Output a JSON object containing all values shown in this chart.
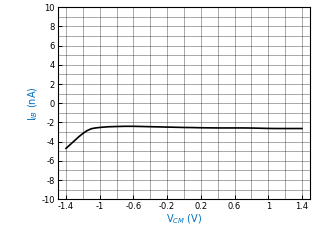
{
  "title": "",
  "xlabel": "V$_{CM}$ (V)",
  "ylabel": "I$_{IB}$ (nA)",
  "xlim": [
    -1.5,
    1.5
  ],
  "ylim": [
    -10,
    10
  ],
  "xticks": [
    -1.4,
    -1.0,
    -0.6,
    -0.2,
    0.2,
    0.6,
    1.0,
    1.4
  ],
  "yticks": [
    -10,
    -8,
    -6,
    -4,
    -2,
    0,
    2,
    4,
    6,
    8,
    10
  ],
  "xlabel_color": "#0070C0",
  "ylabel_color": "#0070C0",
  "line_color": "#000000",
  "line_width": 1.2,
  "background_color": "#ffffff",
  "grid_color": "#000000",
  "grid_linewidth": 0.4,
  "x_minor_ticks": [
    -1.4,
    -1.2,
    -1.0,
    -0.8,
    -0.6,
    -0.4,
    -0.2,
    0.0,
    0.2,
    0.4,
    0.6,
    0.8,
    1.0,
    1.2,
    1.4
  ],
  "y_minor_ticks": [
    -10,
    -9,
    -8,
    -7,
    -6,
    -5,
    -4,
    -3,
    -2,
    -1,
    0,
    1,
    2,
    3,
    4,
    5,
    6,
    7,
    8,
    9,
    10
  ],
  "x_data": [
    -1.4,
    -1.35,
    -1.3,
    -1.25,
    -1.2,
    -1.15,
    -1.1,
    -1.05,
    -1.0,
    -0.95,
    -0.9,
    -0.8,
    -0.7,
    -0.6,
    -0.5,
    -0.4,
    -0.3,
    -0.2,
    -0.1,
    0.0,
    0.1,
    0.2,
    0.3,
    0.4,
    0.5,
    0.6,
    0.7,
    0.8,
    0.9,
    1.0,
    1.1,
    1.2,
    1.3,
    1.4
  ],
  "y_data": [
    -4.7,
    -4.3,
    -3.9,
    -3.5,
    -3.15,
    -2.85,
    -2.65,
    -2.57,
    -2.52,
    -2.48,
    -2.45,
    -2.42,
    -2.4,
    -2.4,
    -2.42,
    -2.44,
    -2.46,
    -2.48,
    -2.5,
    -2.52,
    -2.53,
    -2.55,
    -2.56,
    -2.57,
    -2.57,
    -2.57,
    -2.57,
    -2.58,
    -2.6,
    -2.62,
    -2.63,
    -2.63,
    -2.63,
    -2.63
  ]
}
